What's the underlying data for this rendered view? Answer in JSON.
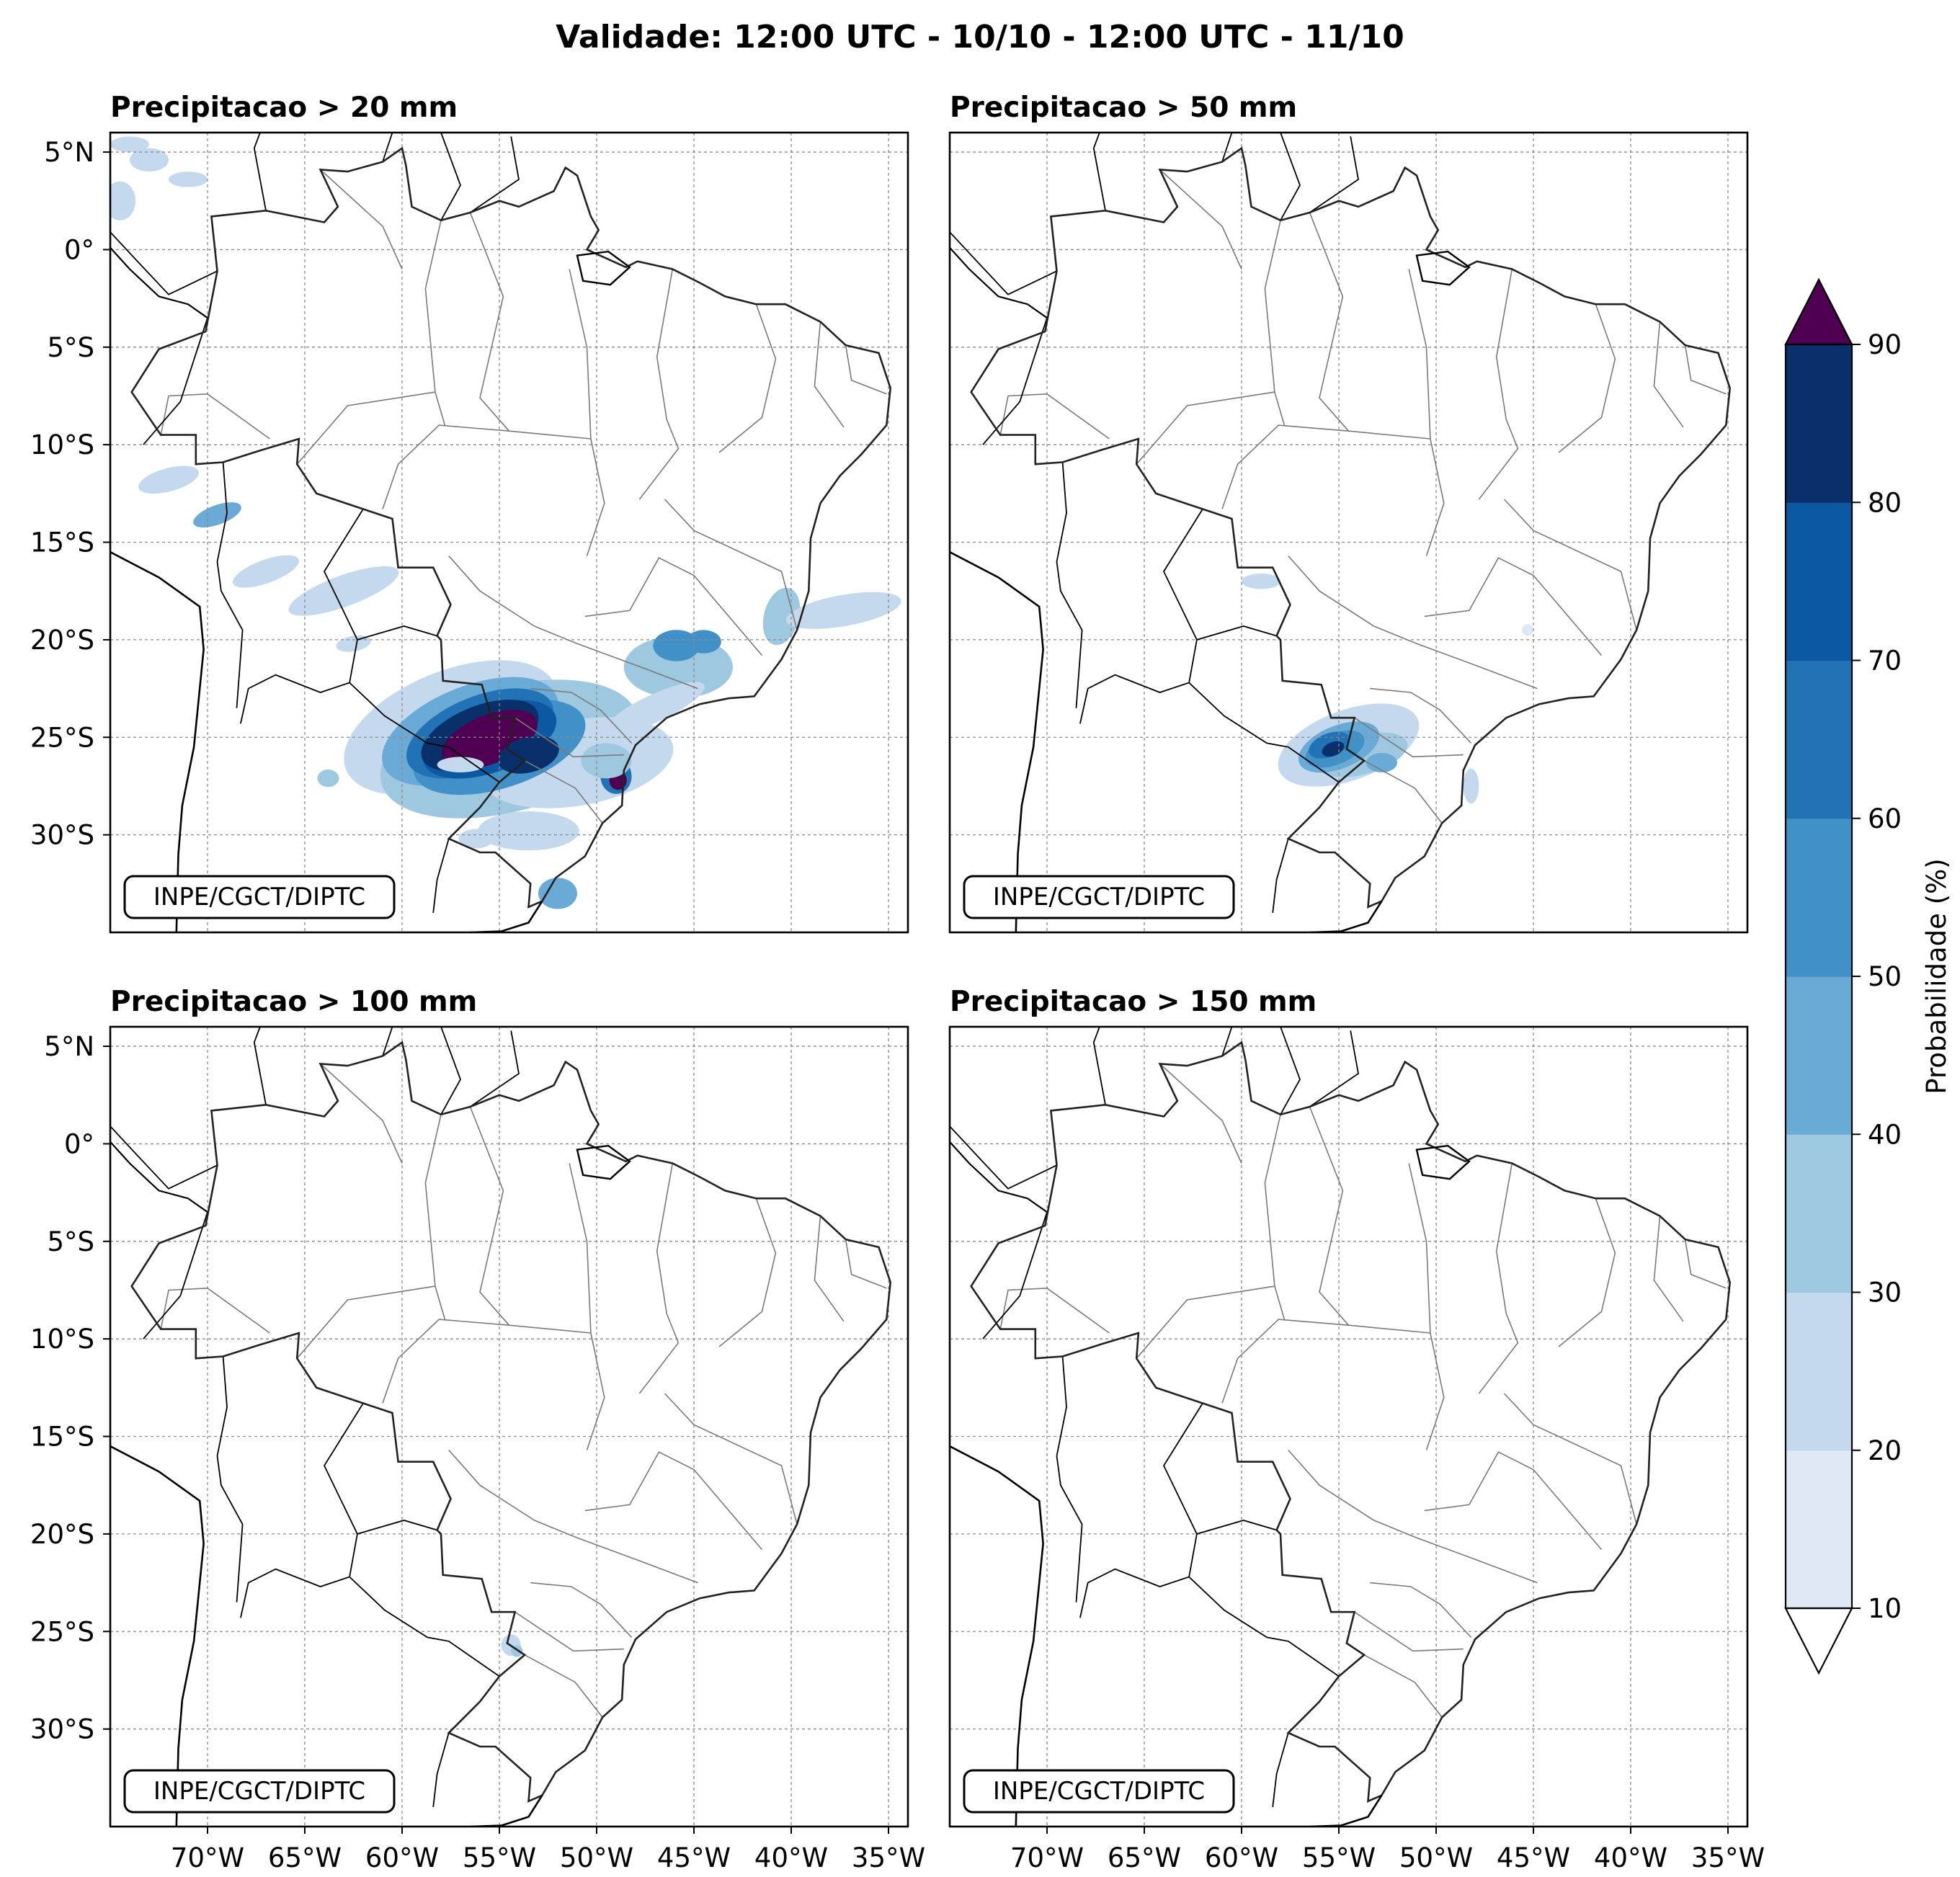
{
  "figure": {
    "title": "Validade: 12:00 UTC - 10/10 - 12:00 UTC - 11/10"
  },
  "panels": [
    {
      "title": "Precipitacao > 20 mm",
      "credit": "INPE/CGCT/DIPTC",
      "intensity": "high"
    },
    {
      "title": "Precipitacao > 50 mm",
      "credit": "INPE/CGCT/DIPTC",
      "intensity": "medium"
    },
    {
      "title": "Precipitacao > 100 mm",
      "credit": "INPE/CGCT/DIPTC",
      "intensity": "low"
    },
    {
      "title": "Precipitacao > 150 mm",
      "credit": "INPE/CGCT/DIPTC",
      "intensity": "none"
    }
  ],
  "axes": {
    "lon_ticks": [
      "70°W",
      "65°W",
      "60°W",
      "55°W",
      "50°W",
      "45°W",
      "40°W",
      "35°W"
    ],
    "lat_ticks": [
      "5°N",
      "0°",
      "5°S",
      "10°S",
      "15°S",
      "20°S",
      "25°S",
      "30°S"
    ],
    "lon_values": [
      -70,
      -65,
      -60,
      -55,
      -50,
      -45,
      -40,
      -35
    ],
    "lat_values": [
      5,
      0,
      -5,
      -10,
      -15,
      -20,
      -25,
      -30
    ],
    "lon_range": [
      -75,
      -34
    ],
    "lat_range": [
      -35,
      6
    ]
  },
  "colorbar": {
    "label": "Probabilidade (%)",
    "ticks": [
      "10",
      "20",
      "30",
      "40",
      "50",
      "60",
      "70",
      "80",
      "90"
    ],
    "levels": [
      10,
      20,
      30,
      40,
      50,
      60,
      70,
      80,
      90
    ],
    "colors": [
      "#dfe9f5",
      "#c5d9ee",
      "#9dc8e0",
      "#6aaad6",
      "#4190c7",
      "#2272b6",
      "#0d58a2",
      "#0a306b"
    ],
    "extend_over_color": "#500052",
    "extend_under_color": "#ffffff"
  }
}
